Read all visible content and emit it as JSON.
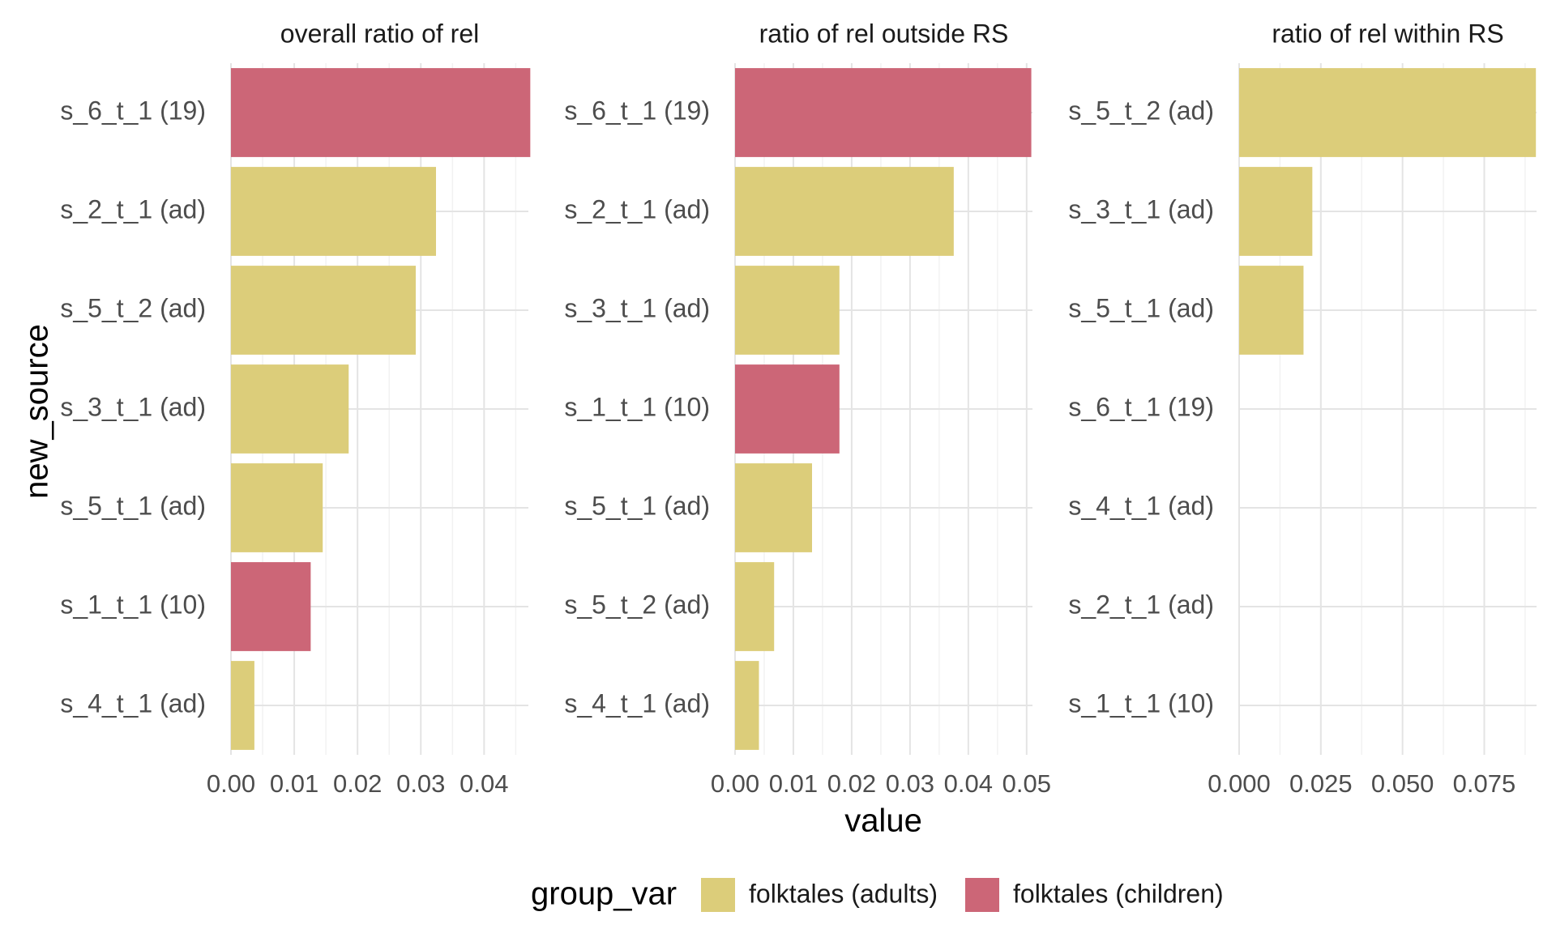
{
  "chart_data": {
    "type": "bar",
    "orientation": "horizontal",
    "facet_by": "measure",
    "ylabel": "new_source",
    "xlabel": "value",
    "grid": true,
    "legend_position": "bottom",
    "legend": {
      "title": "group_var",
      "entries": [
        {
          "name": "folktales (adults)",
          "color": "#DCCD7A"
        },
        {
          "name": "folktales (children)",
          "color": "#CC6677"
        }
      ]
    },
    "panels": [
      {
        "title": "overall ratio of rel",
        "xlim": [
          0,
          0.047
        ],
        "xticks": [
          "0.00",
          "0.01",
          "0.02",
          "0.03",
          "0.04"
        ],
        "xtick_values": [
          0,
          0.01,
          0.02,
          0.03,
          0.04
        ],
        "bars": [
          {
            "category": "s_6_t_1 (19)",
            "value": 0.0473,
            "group": "folktales (children)"
          },
          {
            "category": "s_2_t_1 (ad)",
            "value": 0.0324,
            "group": "folktales (adults)"
          },
          {
            "category": "s_5_t_2 (ad)",
            "value": 0.0292,
            "group": "folktales (adults)"
          },
          {
            "category": "s_3_t_1 (ad)",
            "value": 0.0186,
            "group": "folktales (adults)"
          },
          {
            "category": "s_5_t_1 (ad)",
            "value": 0.0145,
            "group": "folktales (adults)"
          },
          {
            "category": "s_1_t_1 (10)",
            "value": 0.0126,
            "group": "folktales (children)"
          },
          {
            "category": "s_4_t_1 (ad)",
            "value": 0.0037,
            "group": "folktales (adults)"
          }
        ]
      },
      {
        "title": "ratio of rel outside RS",
        "xlim": [
          0,
          0.051
        ],
        "xticks": [
          "0.00",
          "0.01",
          "0.02",
          "0.03",
          "0.04",
          "0.05"
        ],
        "xtick_values": [
          0,
          0.01,
          0.02,
          0.03,
          0.04,
          0.05
        ],
        "bars": [
          {
            "category": "s_6_t_1 (19)",
            "value": 0.0508,
            "group": "folktales (children)"
          },
          {
            "category": "s_2_t_1 (ad)",
            "value": 0.0375,
            "group": "folktales (adults)"
          },
          {
            "category": "s_3_t_1 (ad)",
            "value": 0.0179,
            "group": "folktales (adults)"
          },
          {
            "category": "s_1_t_1 (10)",
            "value": 0.0179,
            "group": "folktales (children)"
          },
          {
            "category": "s_5_t_1 (ad)",
            "value": 0.0132,
            "group": "folktales (adults)"
          },
          {
            "category": "s_5_t_2 (ad)",
            "value": 0.0067,
            "group": "folktales (adults)"
          },
          {
            "category": "s_4_t_1 (ad)",
            "value": 0.0041,
            "group": "folktales (adults)"
          }
        ]
      },
      {
        "title": "ratio of rel within RS",
        "xlim": [
          0,
          0.091
        ],
        "xticks": [
          "0.000",
          "0.025",
          "0.050",
          "0.075"
        ],
        "xtick_values": [
          0,
          0.025,
          0.05,
          0.075
        ],
        "bars": [
          {
            "category": "s_5_t_2 (ad)",
            "value": 0.0908,
            "group": "folktales (adults)"
          },
          {
            "category": "s_3_t_1 (ad)",
            "value": 0.0224,
            "group": "folktales (adults)"
          },
          {
            "category": "s_5_t_1 (ad)",
            "value": 0.0197,
            "group": "folktales (adults)"
          },
          {
            "category": "s_6_t_1 (19)",
            "value": 0,
            "group": "folktales (children)"
          },
          {
            "category": "s_4_t_1 (ad)",
            "value": 0,
            "group": "folktales (adults)"
          },
          {
            "category": "s_2_t_1 (ad)",
            "value": 0,
            "group": "folktales (adults)"
          },
          {
            "category": "s_1_t_1 (10)",
            "value": 0,
            "group": "folktales (children)"
          }
        ]
      }
    ]
  }
}
